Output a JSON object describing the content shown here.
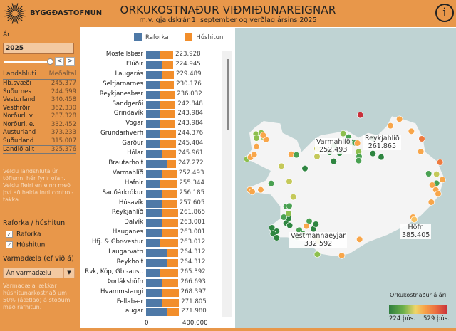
{
  "header": {
    "logo_text": "BYGGÐASTOFNUN",
    "title": "ORKUKOSTNAÐUR VIÐMIÐUNAREIGNAR",
    "subtitle": "m.v. gjaldskrár 1. september og verðlag ársins 2025",
    "info_icon": "i"
  },
  "filters": {
    "year_label": "Ár",
    "year_value": "2025",
    "prev": "<",
    "next": ">",
    "table_header": [
      "Landshluti",
      "Meðaltal"
    ],
    "regions": [
      {
        "name": "Hb.svæði",
        "value": "245.377"
      },
      {
        "name": "Suðurnes",
        "value": "244.599"
      },
      {
        "name": "Vesturland",
        "value": "340.458"
      },
      {
        "name": "Vestfirðir",
        "value": "362.330"
      },
      {
        "name": "Norðurl. v.",
        "value": "287.328"
      },
      {
        "name": "Norðurl. e.",
        "value": "332.452"
      },
      {
        "name": "Austurland",
        "value": "373.233"
      },
      {
        "name": "Suðurland",
        "value": "315.007"
      }
    ],
    "total": {
      "name": "Landið allt",
      "value": "325.376"
    },
    "hint": "Veldu landshluta úr töflunni hér fyrir ofan. Veldu fleiri en einn með því að halda inni control-takka.",
    "type_label": "Raforka / húshitun",
    "cb_raforka": "Raforka",
    "cb_hushitun": "Húshitun",
    "check": "✓",
    "pump_label": "Varmadæla (ef við á)",
    "pump_value": "Án varmadælu",
    "pump_arrow": "▼",
    "pump_hint": "Varmadæla lækkar húshitunarkostnað um 50% (áætlað) á stöðum með rafhitun."
  },
  "chart_data": {
    "type": "bar",
    "stacked": true,
    "orientation": "horizontal",
    "legend": [
      "Raforka",
      "Húshitun"
    ],
    "colors": {
      "Raforka": "#4E79A7",
      "Húshitun": "#F28E2B"
    },
    "xlim": [
      0,
      400000
    ],
    "xticks": [
      "0",
      "400.000"
    ],
    "categories": [
      "Mosfellsbær",
      "Flúðir",
      "Laugarás",
      "Seltjarnarnes",
      "Reykjanesbær",
      "Sandgerði",
      "Grindavík",
      "Vogar",
      "Grundarhverfi",
      "Garður",
      "Hólar",
      "Brautarholt",
      "Varmahlíð",
      "Hafnir",
      "Sauðárkrókur",
      "Húsavík",
      "Reykjahlíð",
      "Dalvík",
      "Hauganes",
      "Hfj. & Gbr-vestur",
      "Laugarvatn",
      "Reykholt",
      "Rvk, Kóp, Gbr-aus..",
      "Þorlákshöfn",
      "Hvammstangi",
      "Fellabær",
      "Laugar"
    ],
    "totals": [
      223928,
      224945,
      229489,
      230176,
      236032,
      242848,
      243984,
      243984,
      244376,
      245404,
      245961,
      247272,
      252493,
      255344,
      256185,
      257605,
      261865,
      263001,
      263001,
      263012,
      264312,
      264312,
      265392,
      266693,
      268397,
      271805,
      271980
    ],
    "total_labels": [
      "223.928",
      "224.945",
      "229.489",
      "230.176",
      "236.032",
      "242.848",
      "243.984",
      "243.984",
      "244.376",
      "245.404",
      "245.961",
      "247.272",
      "252.493",
      "255.344",
      "256.185",
      "257.605",
      "261.865",
      "263.001",
      "263.001",
      "263.012",
      "264.312",
      "264.312",
      "265.392",
      "266.693",
      "268.397",
      "271.805",
      "271.980"
    ],
    "raforka": [
      118000,
      138000,
      138000,
      119000,
      113000,
      115000,
      115000,
      115000,
      118000,
      115000,
      135000,
      171000,
      138000,
      113000,
      138000,
      138000,
      138000,
      138000,
      138000,
      113000,
      170000,
      170000,
      118000,
      138000,
      138000,
      138000,
      170000
    ]
  },
  "map": {
    "labels": [
      {
        "name": "Varmahlíð",
        "value": "252.493"
      },
      {
        "name": "Reykjahlíð",
        "value": "261.865"
      },
      {
        "name": "Höfn",
        "value": "385.405"
      },
      {
        "name": "Vestmannaeyjar",
        "value": "332.592"
      }
    ],
    "scale_title": "Orkukostnaður á ári",
    "scale_min": "224 þús.",
    "scale_max": "529 þús."
  }
}
